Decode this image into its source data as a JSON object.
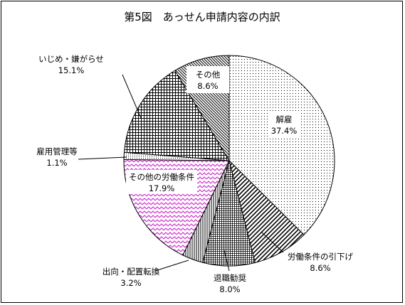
{
  "chart_data": {
    "type": "pie",
    "title": "第5図　あっせん申請内容の内訳",
    "start_angle_deg": 0,
    "direction": "clockwise",
    "slices": [
      {
        "label": "解雇",
        "value_text": "37.4%",
        "value": 37.4,
        "pattern": "dots",
        "color": "#000000"
      },
      {
        "label": "労働条件の引下げ",
        "value_text": "8.6%",
        "value": 8.6,
        "pattern": "diag-bold",
        "color": "#000000"
      },
      {
        "label": "退職勧奨",
        "value_text": "8.0%",
        "value": 8.0,
        "pattern": "fine-grid",
        "color": "#000000"
      },
      {
        "label": "出向・配置転換",
        "value_text": "3.2%",
        "value": 3.2,
        "pattern": "vertical",
        "color": "#000000"
      },
      {
        "label": "その他の労働条件",
        "value_text": "17.9%",
        "value": 17.9,
        "pattern": "zigzag",
        "color": "#cc33cc"
      },
      {
        "label": "雇用管理等",
        "value_text": "1.1%",
        "value": 1.1,
        "pattern": "sparse-dots",
        "color": "#000000"
      },
      {
        "label": "いじめ・嫌がらせ",
        "value_text": "15.1%",
        "value": 15.1,
        "pattern": "grid",
        "color": "#000000"
      },
      {
        "label": "その他",
        "value_text": "8.6%",
        "value": 8.6,
        "pattern": "diag-thin",
        "color": "#000000"
      }
    ]
  }
}
